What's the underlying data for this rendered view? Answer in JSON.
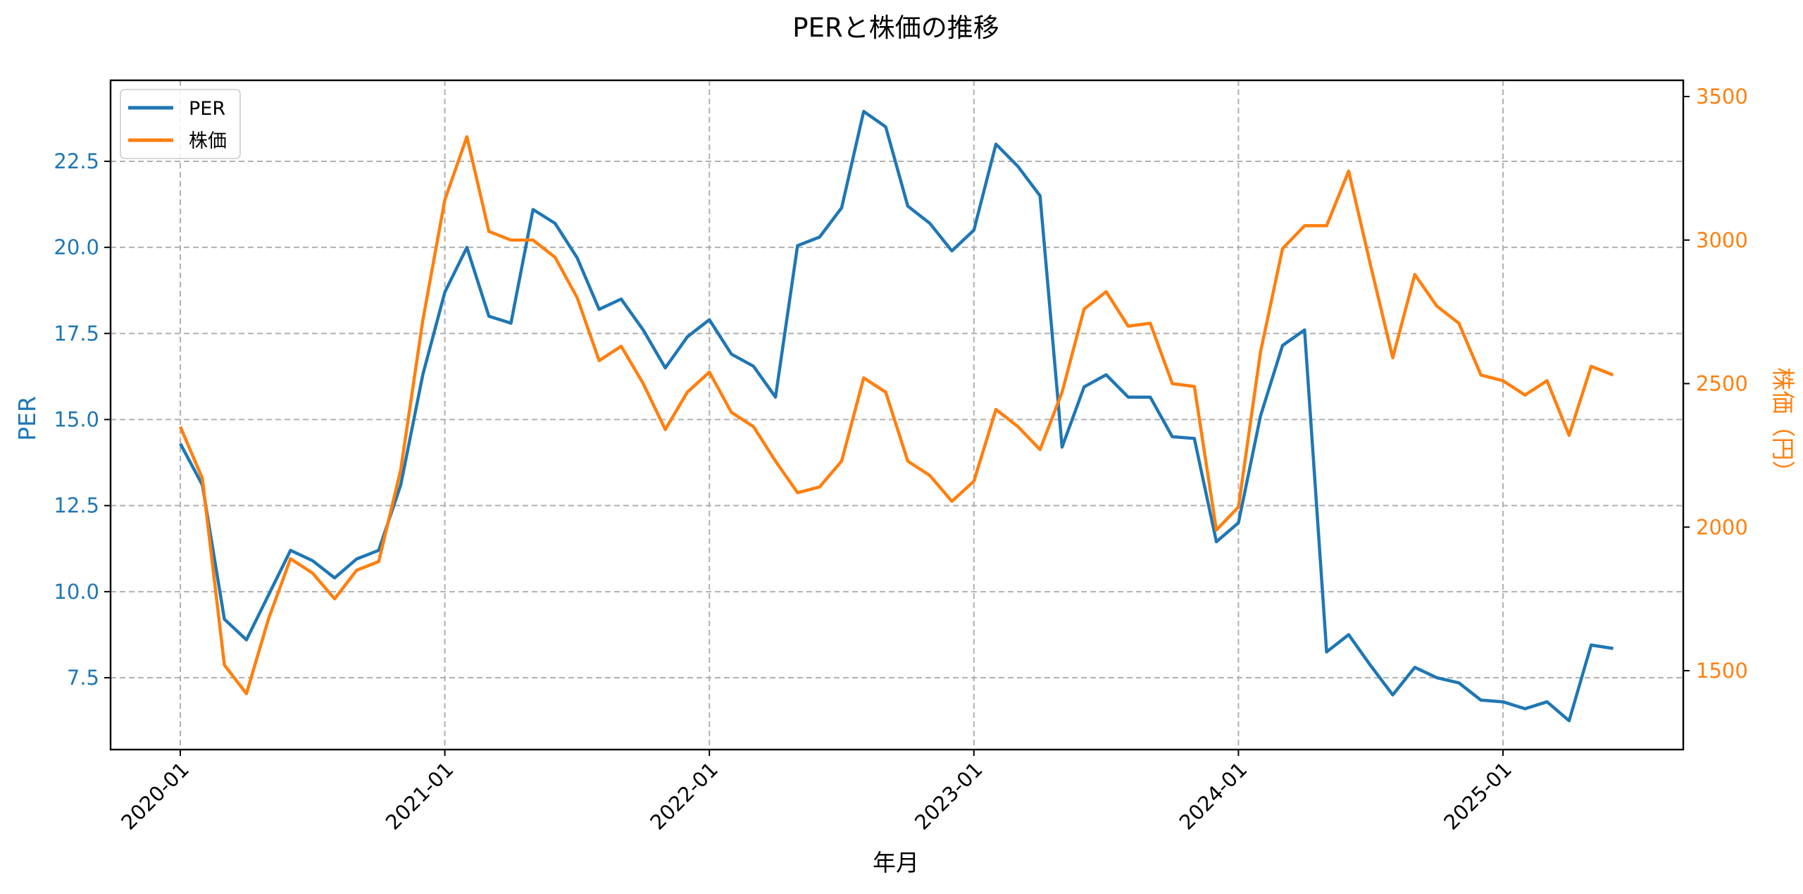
{
  "chart_data": {
    "type": "line",
    "title": "PERと株価の推移",
    "xlabel": "年月",
    "ylabel": "PER",
    "ylabel_right": "株価（円）",
    "x_ticks": [
      "2020-01",
      "2021-01",
      "2022-01",
      "2023-01",
      "2024-01",
      "2025-01"
    ],
    "y_ticks_left": [
      "7.5",
      "10.0",
      "12.5",
      "15.0",
      "17.5",
      "20.0",
      "22.5"
    ],
    "y_ticks_right": [
      "1500",
      "2000",
      "2500",
      "3000",
      "3500"
    ],
    "ylim_left": [
      5.3,
      24.7
    ],
    "ylim_right": [
      1230,
      3560
    ],
    "grid": true,
    "legend_position": "upper left",
    "x": [
      "2020-01",
      "2020-02",
      "2020-03",
      "2020-04",
      "2020-05",
      "2020-06",
      "2020-07",
      "2020-08",
      "2020-09",
      "2020-10",
      "2020-11",
      "2020-12",
      "2021-01",
      "2021-02",
      "2021-03",
      "2021-04",
      "2021-05",
      "2021-06",
      "2021-07",
      "2021-08",
      "2021-09",
      "2021-10",
      "2021-11",
      "2021-12",
      "2022-01",
      "2022-02",
      "2022-03",
      "2022-04",
      "2022-05",
      "2022-06",
      "2022-07",
      "2022-08",
      "2022-09",
      "2022-10",
      "2022-11",
      "2022-12",
      "2023-01",
      "2023-02",
      "2023-03",
      "2023-04",
      "2023-05",
      "2023-06",
      "2023-07",
      "2023-08",
      "2023-09",
      "2023-10",
      "2023-11",
      "2023-12",
      "2024-01",
      "2024-02",
      "2024-03",
      "2024-04",
      "2024-05",
      "2024-06",
      "2024-07",
      "2024-08",
      "2024-09",
      "2024-10",
      "2024-11",
      "2024-12",
      "2025-01",
      "2025-02",
      "2025-03",
      "2025-04",
      "2025-05",
      "2025-06"
    ],
    "series": [
      {
        "name": "PER",
        "axis": "left",
        "color": "#1f77b4",
        "values": [
          14.3,
          13.1,
          9.2,
          8.6,
          9.9,
          11.2,
          10.9,
          10.4,
          10.95,
          11.2,
          13.1,
          16.3,
          18.7,
          20.0,
          18.0,
          17.8,
          21.1,
          20.7,
          19.7,
          18.2,
          18.5,
          17.6,
          16.5,
          17.4,
          17.9,
          16.9,
          16.55,
          15.65,
          20.05,
          20.3,
          21.15,
          23.95,
          23.5,
          21.2,
          20.7,
          19.9,
          20.5,
          23.0,
          22.35,
          21.5,
          14.2,
          15.95,
          16.3,
          15.65,
          15.65,
          14.5,
          14.45,
          11.45,
          12.0,
          15.1,
          17.15,
          17.6,
          8.25,
          8.75,
          7.85,
          7.0,
          7.8,
          7.5,
          7.35,
          6.85,
          6.8,
          6.6,
          6.8,
          6.25,
          8.45,
          8.35
        ]
      },
      {
        "name": "株価",
        "axis": "right",
        "color": "#ff7f0e",
        "values": [
          2350,
          2170,
          1520,
          1420,
          1680,
          1890,
          1840,
          1750,
          1850,
          1880,
          2200,
          2720,
          3140,
          3360,
          3030,
          3000,
          3000,
          2940,
          2800,
          2580,
          2630,
          2500,
          2340,
          2470,
          2540,
          2400,
          2350,
          2230,
          2120,
          2140,
          2230,
          2520,
          2470,
          2230,
          2180,
          2090,
          2160,
          2410,
          2350,
          2270,
          2470,
          2760,
          2820,
          2700,
          2710,
          2500,
          2490,
          1990,
          2070,
          2610,
          2970,
          3050,
          3050,
          3240,
          2910,
          2590,
          2880,
          2770,
          2710,
          2530,
          2510,
          2460,
          2510,
          2320,
          2560,
          2530
        ]
      }
    ]
  },
  "legend": {
    "items": [
      {
        "label": "PER",
        "color": "#1f77b4"
      },
      {
        "label": "株価",
        "color": "#ff7f0e"
      }
    ]
  },
  "colors": {
    "per": "#1f77b4",
    "price": "#ff7f0e",
    "grid": "#b0b0b0",
    "axis": "#000000"
  }
}
